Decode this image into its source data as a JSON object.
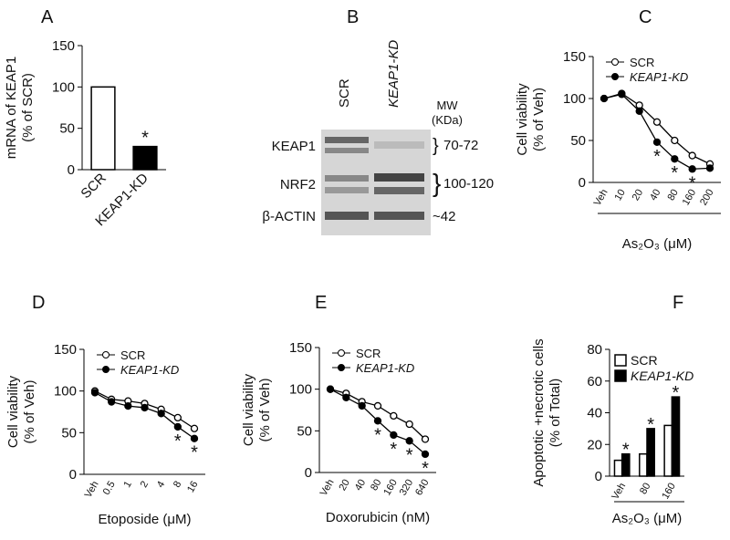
{
  "chart_data": [
    {
      "type": "bar",
      "panel": "A",
      "ylabel": [
        "mRNA of KEAP1",
        "(% of SCR)"
      ],
      "categories": [
        "SCR",
        "KEAP1-KD"
      ],
      "values": [
        100,
        28
      ],
      "colors": [
        "#ffffff",
        "#000000"
      ],
      "sig_labels": [
        null,
        "*"
      ],
      "ylim": [
        0,
        150
      ],
      "yticks": [
        0,
        50,
        100,
        150
      ]
    },
    {
      "type": "line",
      "panel": "C",
      "ylabel": [
        "Cell viability",
        "(% of Veh)"
      ],
      "xlabel": "As₂O₃ (μM)",
      "categories": [
        "Veh",
        "10",
        "20",
        "40",
        "80",
        "160",
        "200"
      ],
      "series": [
        {
          "name": "SCR",
          "color": "#000000",
          "marker": "open",
          "values": [
            100,
            106,
            92,
            72,
            50,
            32,
            22
          ],
          "sig_labels": [
            null,
            null,
            null,
            null,
            null,
            null,
            null
          ]
        },
        {
          "name": "KEAP1-KD",
          "color": "#000000",
          "marker": "filled",
          "values": [
            100,
            105,
            85,
            48,
            28,
            16,
            17
          ],
          "sig_labels": [
            null,
            null,
            null,
            "*",
            "*",
            "*",
            null
          ]
        }
      ],
      "ylim": [
        0,
        150
      ],
      "yticks": [
        0,
        50,
        100,
        150
      ],
      "legend": "upper right"
    },
    {
      "type": "line",
      "panel": "D",
      "ylabel": [
        "Cell viability",
        "(% of Veh)"
      ],
      "xlabel": "Etoposide (μM)",
      "categories": [
        "Veh",
        "0.5",
        "1",
        "2",
        "4",
        "8",
        "16"
      ],
      "series": [
        {
          "name": "SCR",
          "color": "#000000",
          "marker": "open",
          "values": [
            100,
            90,
            88,
            85,
            78,
            68,
            55
          ],
          "sig_labels": [
            null,
            null,
            null,
            null,
            null,
            null,
            null
          ]
        },
        {
          "name": "KEAP1-KD",
          "color": "#000000",
          "marker": "filled",
          "values": [
            98,
            87,
            82,
            80,
            73,
            57,
            43
          ],
          "sig_labels": [
            null,
            null,
            null,
            null,
            null,
            "*",
            "*"
          ]
        }
      ],
      "ylim": [
        0,
        150
      ],
      "yticks": [
        0,
        50,
        100,
        150
      ],
      "legend": "upper right"
    },
    {
      "type": "line",
      "panel": "E",
      "ylabel": [
        "Cell viability",
        "(% of Veh)"
      ],
      "xlabel": "Doxorubicin (nM)",
      "categories": [
        "Veh",
        "20",
        "40",
        "80",
        "160",
        "320",
        "640"
      ],
      "series": [
        {
          "name": "SCR",
          "color": "#000000",
          "marker": "open",
          "values": [
            100,
            95,
            85,
            80,
            68,
            58,
            40
          ],
          "sig_labels": [
            null,
            null,
            null,
            null,
            null,
            null,
            null
          ]
        },
        {
          "name": "KEAP1-KD",
          "color": "#000000",
          "marker": "filled",
          "values": [
            100,
            90,
            80,
            62,
            45,
            38,
            22
          ],
          "sig_labels": [
            null,
            null,
            null,
            "*",
            "*",
            "*",
            "*"
          ]
        }
      ],
      "ylim": [
        0,
        150
      ],
      "yticks": [
        0,
        50,
        100,
        150
      ],
      "legend": "upper right"
    },
    {
      "type": "grouped_bar",
      "panel": "F",
      "ylabel": [
        "Apoptotic +necrotic cells",
        "(% of Total)"
      ],
      "xlabel": "As₂O₃ (μM)",
      "categories": [
        "Veh",
        "80",
        "160"
      ],
      "series": [
        {
          "name": "SCR",
          "color": "#ffffff",
          "values": [
            10,
            14,
            32
          ],
          "sig_labels": [
            null,
            null,
            null
          ]
        },
        {
          "name": "KEAP1-KD",
          "color": "#000000",
          "values": [
            14,
            30,
            50
          ],
          "sig_labels": [
            "*",
            "*",
            "*"
          ]
        }
      ],
      "ylim": [
        0,
        80
      ],
      "yticks": [
        0,
        20,
        40,
        60,
        80
      ],
      "legend": "upper left"
    }
  ],
  "blot": {
    "panel": "B",
    "columns": [
      "SCR",
      "KEAP1-KD"
    ],
    "mw_header": [
      "MW",
      "(KDa)"
    ],
    "rows": [
      {
        "label": "KEAP1",
        "mw": "70-72"
      },
      {
        "label": "NRF2",
        "mw": "100-120"
      },
      {
        "label": "β-ACTIN",
        "mw": "~42"
      }
    ]
  }
}
